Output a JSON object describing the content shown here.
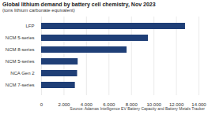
{
  "chart_data": {
    "type": "bar",
    "orientation": "horizontal",
    "title": "Global lithium demand by battery cell chemistry, Nov 2023",
    "subtitle": "(tons lithium carbonate equivalent)",
    "caption": "Source: Adamas Intelligence EV Battery Capacity and Battery Metals Tracker",
    "categories": [
      "LFP",
      "NCM 5-series",
      "NCM 8-series",
      "NCM 5-series",
      "NCA Gen 2",
      "NCM 7-series"
    ],
    "values": [
      12800,
      9500,
      7600,
      3250,
      3200,
      3000
    ],
    "color": "#1f3f77",
    "xlim": [
      0,
      14000
    ],
    "xticks": [
      0,
      {
        "value": 2000,
        "label": "2,000"
      },
      {
        "value": 4000,
        "label": "4,000"
      },
      {
        "value": 6000,
        "label": "6,000"
      },
      {
        "value": 8000,
        "label": "8,000"
      },
      {
        "value": 10000,
        "label": "10,000"
      },
      {
        "value": 12000,
        "label": "12,000"
      },
      {
        "value": 14000,
        "label": "14,000"
      }
    ],
    "grid": true
  }
}
